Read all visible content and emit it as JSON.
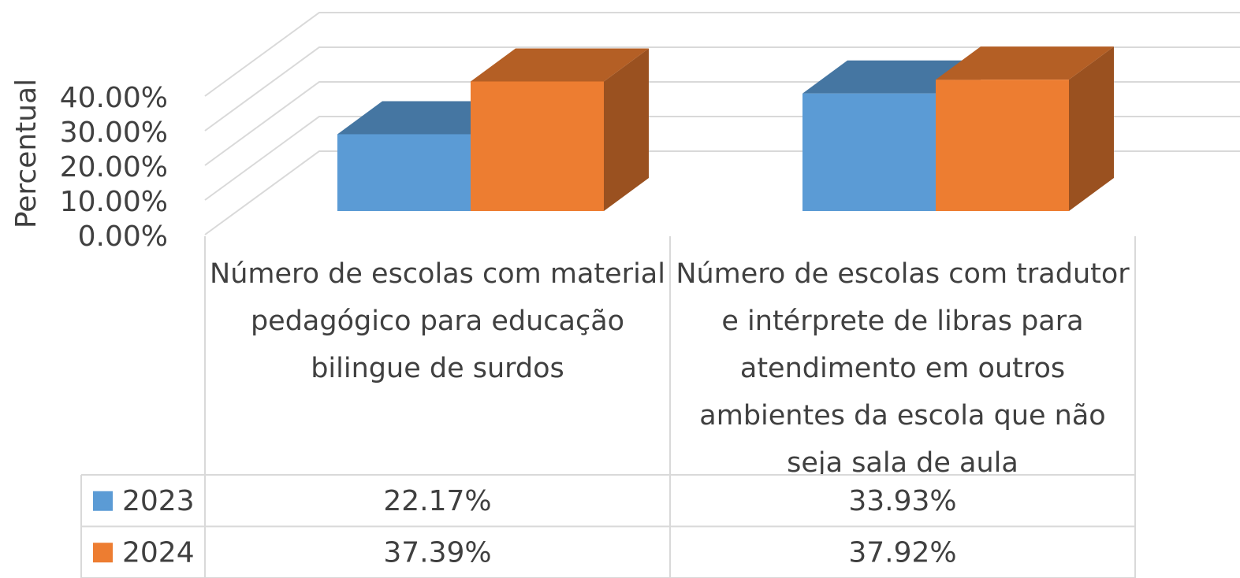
{
  "chart_data": {
    "type": "bar",
    "y_label": "Percentual",
    "categories": [
      "Número de escolas com material pedagógico para educação bilingue de surdos",
      "Número de escolas com tradutor e intérprete de libras para atendimento em outros ambientes da escola que não seja sala de aula"
    ],
    "series": [
      {
        "name": "2023",
        "color": "#5b9bd5",
        "values": [
          22.17,
          33.93
        ],
        "value_labels": [
          "22.17%",
          "33.93%"
        ]
      },
      {
        "name": "2024",
        "color": "#ed7d31",
        "values": [
          37.39,
          37.92
        ],
        "value_labels": [
          "37.39%",
          "37.92%"
        ]
      }
    ],
    "ylim": [
      0,
      40
    ],
    "yticks": [
      {
        "value": 0,
        "label": "0.00%"
      },
      {
        "value": 10,
        "label": "10.00%"
      },
      {
        "value": 20,
        "label": "20.00%"
      },
      {
        "value": 30,
        "label": "30.00%"
      },
      {
        "value": 40,
        "label": "40.00%"
      }
    ],
    "grid": true
  }
}
